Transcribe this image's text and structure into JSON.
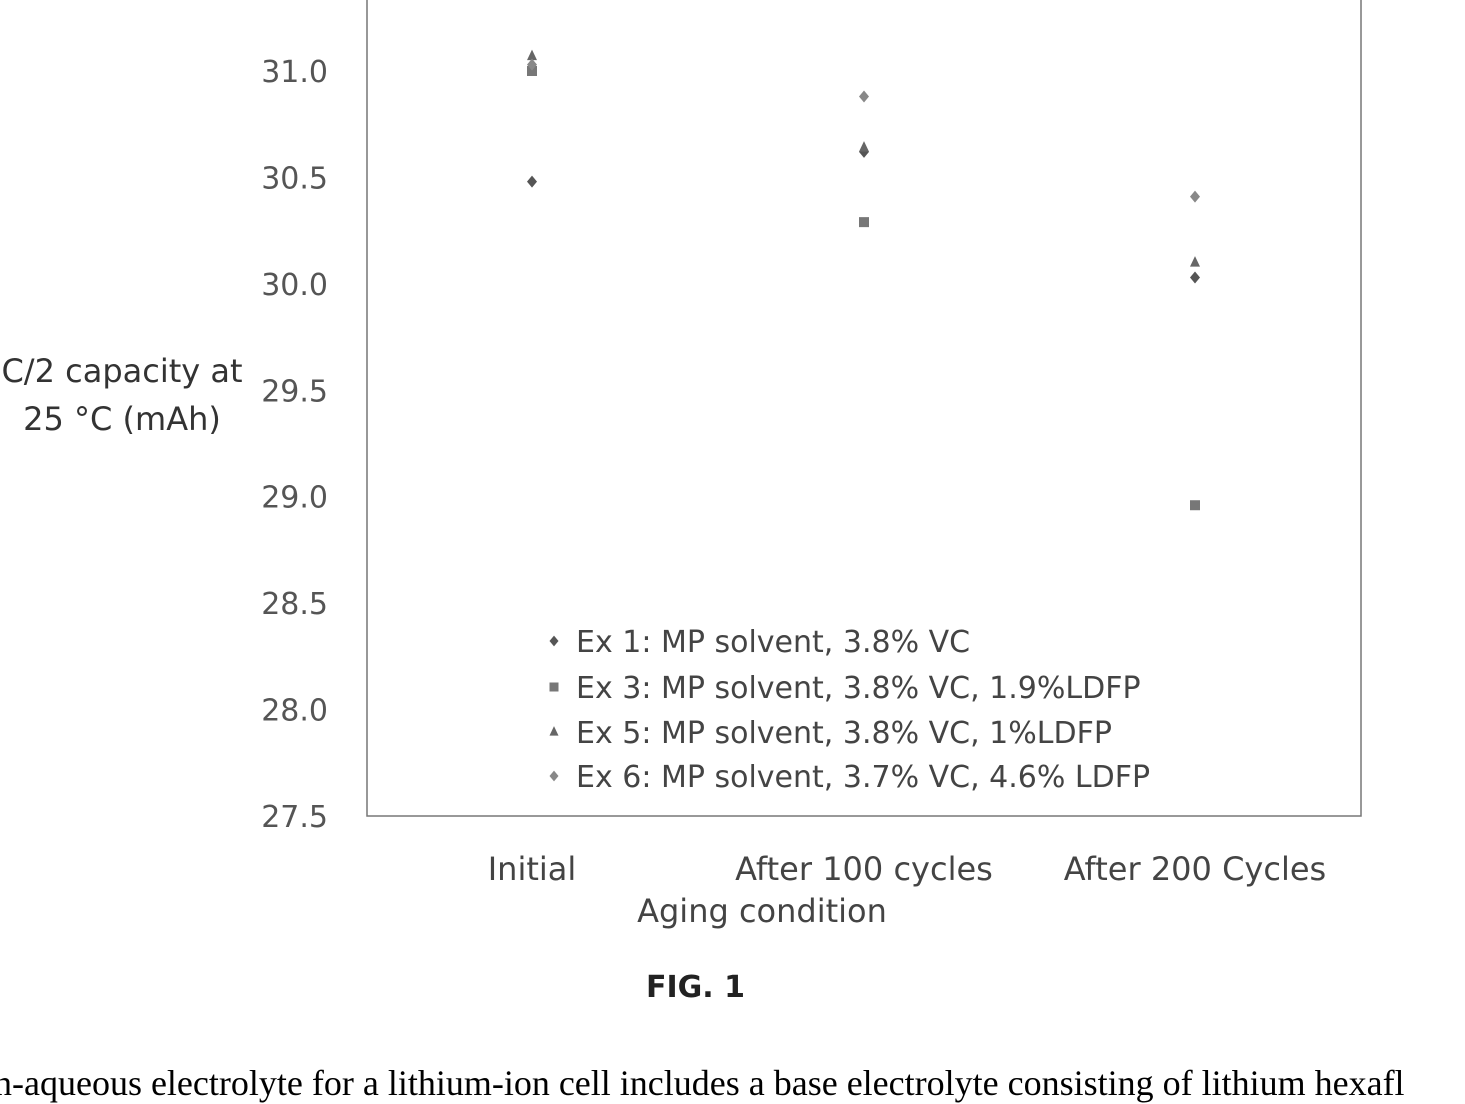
{
  "figure_label": "FIG. 1",
  "caption_text": "n-aqueous electrolyte for a lithium-ion cell includes a base electrolyte consisting of lithium hexafl",
  "chart_data": {
    "type": "scatter",
    "title": "",
    "xlabel": "Aging condition",
    "ylabel": "C/2 capacity at 25 °C (mAh)",
    "categories": [
      "Initial",
      "After 100 cycles",
      "After 200 Cycles"
    ],
    "ylim": [
      27.5,
      31.3
    ],
    "yticks": [
      "31.0",
      "30.5",
      "30.0",
      "29.5",
      "29.0",
      "28.5",
      "28.0",
      "27.5"
    ],
    "grid": false,
    "legend_position": "bottom-center",
    "series": [
      {
        "name": "Ex 1: MP solvent, 3.8% VC",
        "marker": "diamond",
        "color": "#555555",
        "values": [
          30.48,
          30.62,
          30.03
        ]
      },
      {
        "name": "Ex 3: MP solvent, 3.8% VC, 1.9%LDFP",
        "marker": "square",
        "color": "#777777",
        "values": [
          31.0,
          30.29,
          28.96
        ]
      },
      {
        "name": "Ex 5: MP solvent, 3.8% VC, 1%LDFP",
        "marker": "triangle",
        "color": "#666666",
        "values": [
          31.07,
          30.64,
          30.1
        ]
      },
      {
        "name": "Ex 6: MP solvent, 3.7% VC, 4.6% LDFP",
        "marker": "diamond",
        "color": "#888888",
        "values": [
          31.03,
          30.88,
          30.41
        ]
      }
    ]
  }
}
